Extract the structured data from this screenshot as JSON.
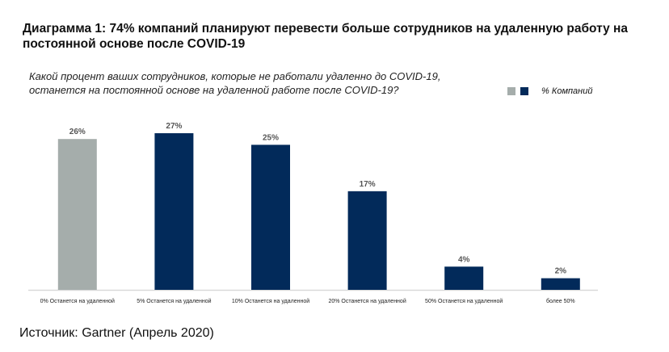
{
  "chart_data": {
    "type": "bar",
    "title": "Диаграмма 1: 74% компаний планируют перевести больше сотрудников на удаленную работу на постоянной основе после COVID-19",
    "subtitle_line1": "Какой процент ваших сотрудников, которые не работали удаленно до COVID-19,",
    "subtitle_line2": "останется на постоянной основе на удаленной работе после COVID-19?",
    "legend": "% Компаний",
    "legend_placement": "top-right",
    "categories": [
      "0% Останется на удаленной",
      "5% Останется на удаленной",
      "10% Останется на удаленной",
      "20% Останется на удаленной",
      "50% Останется на удаленной",
      "более 50%"
    ],
    "values": [
      26,
      27,
      25,
      17,
      4,
      2
    ],
    "labels": [
      "26%",
      "27%",
      "25%",
      "17%",
      "4%",
      "2%"
    ],
    "colors": [
      "#a5adab",
      "#022a5a",
      "#022a5a",
      "#022a5a",
      "#022a5a",
      "#022a5a"
    ],
    "ylim": [
      0,
      28
    ],
    "grid": false
  },
  "source": "Источник: Gartner (Апрель 2020)"
}
